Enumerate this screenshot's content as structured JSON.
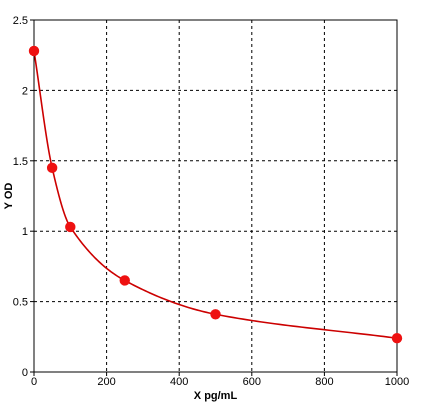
{
  "chart_data": {
    "type": "scatter",
    "title": "",
    "xlabel": "X pg/mL",
    "ylabel": "Y OD",
    "xlim": [
      0,
      1000
    ],
    "ylim": [
      0,
      2.5
    ],
    "xticks": [
      0,
      200,
      400,
      600,
      800,
      1000
    ],
    "yticks": [
      0,
      0.5,
      1,
      1.5,
      2,
      2.5
    ],
    "xtick_labels": [
      "0",
      "200",
      "400",
      "600",
      "800",
      "1000"
    ],
    "ytick_labels": [
      "0",
      "0.5",
      "1",
      "1.5",
      "2",
      "2.5"
    ],
    "grid": true,
    "grid_style": "dashed",
    "legend": "none",
    "series": [
      {
        "marker_color": "#ee1111",
        "line_color": "#cc0000",
        "x": [
          0,
          50,
          100,
          250,
          500,
          1000
        ],
        "y": [
          2.28,
          1.45,
          1.03,
          0.65,
          0.41,
          0.24
        ]
      }
    ]
  }
}
